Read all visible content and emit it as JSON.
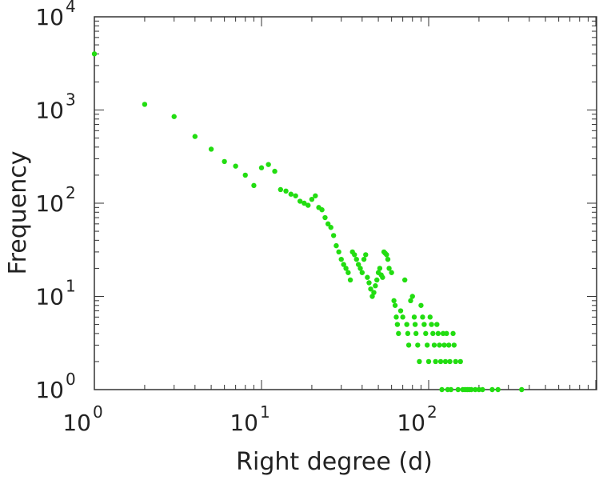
{
  "chart_data": {
    "type": "scatter",
    "title": "",
    "xlabel": "Right degree (d)",
    "ylabel": "Frequency",
    "xscale": "log",
    "yscale": "log",
    "xlim": [
      1,
      1000
    ],
    "ylim": [
      1,
      10000
    ],
    "grid": false,
    "marker_color": "#22dd11",
    "x_ticks": [
      {
        "base": "10",
        "exp": "0",
        "value": 1
      },
      {
        "base": "10",
        "exp": "1",
        "value": 10
      },
      {
        "base": "10",
        "exp": "2",
        "value": 100
      }
    ],
    "y_ticks": [
      {
        "base": "10",
        "exp": "0",
        "value": 1
      },
      {
        "base": "10",
        "exp": "1",
        "value": 10
      },
      {
        "base": "10",
        "exp": "2",
        "value": 100
      },
      {
        "base": "10",
        "exp": "3",
        "value": 1000
      },
      {
        "base": "10",
        "exp": "4",
        "value": 10000
      }
    ],
    "points": [
      [
        1,
        4000
      ],
      [
        2,
        1150
      ],
      [
        3,
        850
      ],
      [
        4,
        520
      ],
      [
        5,
        380
      ],
      [
        6,
        280
      ],
      [
        7,
        250
      ],
      [
        8,
        200
      ],
      [
        9,
        155
      ],
      [
        10,
        240
      ],
      [
        11,
        260
      ],
      [
        12,
        220
      ],
      [
        13,
        140
      ],
      [
        14,
        135
      ],
      [
        15,
        125
      ],
      [
        16,
        120
      ],
      [
        17,
        105
      ],
      [
        18,
        100
      ],
      [
        19,
        95
      ],
      [
        20,
        110
      ],
      [
        21,
        120
      ],
      [
        22,
        90
      ],
      [
        23,
        85
      ],
      [
        24,
        70
      ],
      [
        25,
        60
      ],
      [
        26,
        55
      ],
      [
        27,
        45
      ],
      [
        28,
        35
      ],
      [
        29,
        30
      ],
      [
        30,
        25
      ],
      [
        31,
        22
      ],
      [
        32,
        20
      ],
      [
        33,
        18
      ],
      [
        34,
        15
      ],
      [
        35,
        30
      ],
      [
        36,
        28
      ],
      [
        37,
        25
      ],
      [
        38,
        22
      ],
      [
        39,
        20
      ],
      [
        40,
        18
      ],
      [
        41,
        25
      ],
      [
        42,
        28
      ],
      [
        43,
        16
      ],
      [
        44,
        14
      ],
      [
        45,
        12
      ],
      [
        46,
        10
      ],
      [
        47,
        11
      ],
      [
        48,
        13
      ],
      [
        49,
        15
      ],
      [
        50,
        18
      ],
      [
        51,
        20
      ],
      [
        52,
        17
      ],
      [
        53,
        16
      ],
      [
        54,
        30
      ],
      [
        55,
        29
      ],
      [
        56,
        28
      ],
      [
        57,
        25
      ],
      [
        58,
        20
      ],
      [
        60,
        18
      ],
      [
        62,
        9
      ],
      [
        63,
        8
      ],
      [
        64,
        6
      ],
      [
        65,
        5
      ],
      [
        66,
        4
      ],
      [
        68,
        7
      ],
      [
        70,
        6
      ],
      [
        72,
        15
      ],
      [
        74,
        5
      ],
      [
        75,
        4
      ],
      [
        76,
        3
      ],
      [
        78,
        9
      ],
      [
        80,
        10
      ],
      [
        82,
        6
      ],
      [
        83,
        5
      ],
      [
        84,
        4
      ],
      [
        86,
        3
      ],
      [
        88,
        2
      ],
      [
        90,
        8
      ],
      [
        92,
        6
      ],
      [
        94,
        5
      ],
      [
        96,
        4
      ],
      [
        98,
        3
      ],
      [
        100,
        2
      ],
      [
        102,
        6
      ],
      [
        104,
        5
      ],
      [
        106,
        4
      ],
      [
        108,
        3
      ],
      [
        110,
        2
      ],
      [
        112,
        5
      ],
      [
        114,
        4
      ],
      [
        116,
        3
      ],
      [
        118,
        2
      ],
      [
        120,
        1
      ],
      [
        122,
        4
      ],
      [
        124,
        3
      ],
      [
        126,
        2
      ],
      [
        128,
        4
      ],
      [
        130,
        1
      ],
      [
        132,
        3
      ],
      [
        134,
        2
      ],
      [
        136,
        1
      ],
      [
        140,
        4
      ],
      [
        142,
        3
      ],
      [
        145,
        2
      ],
      [
        150,
        1
      ],
      [
        155,
        2
      ],
      [
        160,
        1
      ],
      [
        165,
        1
      ],
      [
        170,
        1
      ],
      [
        175,
        1
      ],
      [
        180,
        1
      ],
      [
        190,
        1
      ],
      [
        200,
        1
      ],
      [
        210,
        1
      ],
      [
        240,
        1
      ],
      [
        260,
        1
      ],
      [
        360,
        1
      ]
    ]
  }
}
